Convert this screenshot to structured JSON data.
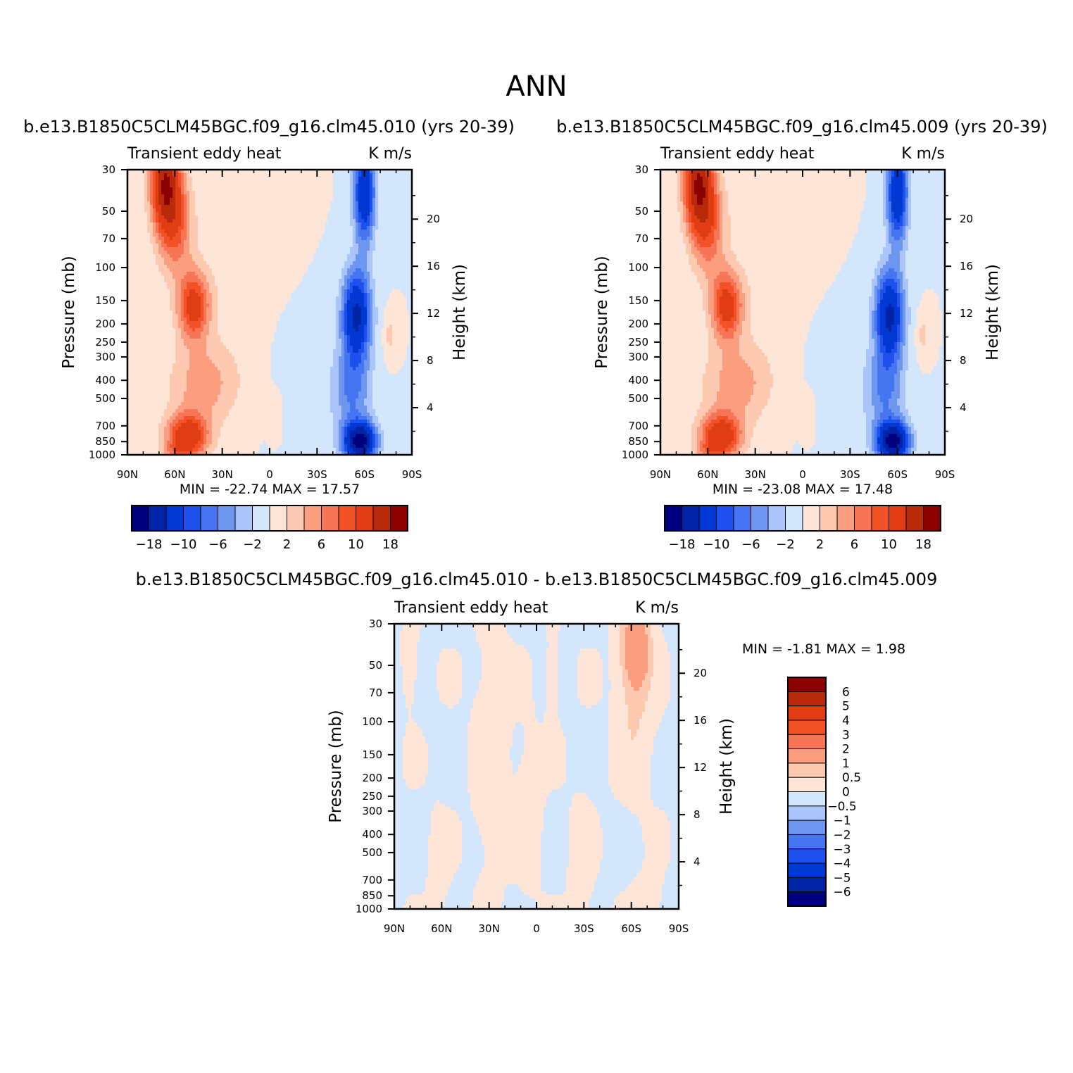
{
  "figure": {
    "title": "ANN"
  },
  "colors": {
    "main_scale": [
      "#00007f",
      "#0024a8",
      "#0038d4",
      "#1e50ee",
      "#4575f0",
      "#6c96f0",
      "#a9c5fb",
      "#d3e6fb",
      "#fde6d7",
      "#fdc9b0",
      "#fb9e80",
      "#f87456",
      "#f25225",
      "#e03d15",
      "#b82a0a",
      "#8b0000"
    ],
    "diff_scale": [
      "#00007f",
      "#0024a8",
      "#0038d4",
      "#1e50ee",
      "#4575f0",
      "#6c96f0",
      "#a9c5fb",
      "#d3e6fb",
      "#fde6d7",
      "#fdc9b0",
      "#fb9e80",
      "#f87456",
      "#f25225",
      "#e03d15",
      "#b82a0a",
      "#8b0000"
    ]
  },
  "panels": [
    {
      "id": "case",
      "title": "b.e13.B1850C5CLM45BGC.f09_g16.clm45.010 (yrs 20-39)",
      "left_label": "Transient eddy heat",
      "right_label": "K m/s",
      "stats": "MIN =  -22.74   MAX =   17.57"
    },
    {
      "id": "control",
      "title": "b.e13.B1850C5CLM45BGC.f09_g16.clm45.009 (yrs 20-39)",
      "left_label": "Transient eddy heat",
      "right_label": "K m/s",
      "stats": "MIN =  -23.08   MAX =   17.48"
    },
    {
      "id": "diff",
      "title": "b.e13.B1850C5CLM45BGC.f09_g16.clm45.010 - b.e13.B1850C5CLM45BGC.f09_g16.clm45.009",
      "left_label": "Transient eddy heat",
      "right_label": "K m/s",
      "stats": "MIN =   -1.81   MAX =    1.98"
    }
  ],
  "axes": {
    "ylabel": "Pressure (mb)",
    "y2label": "Height (km)"
  },
  "main_colorbar_labels": [
    "-18",
    "-10",
    "-6",
    "-2",
    "2",
    "6",
    "10",
    "18"
  ],
  "diff_colorbar_labels": [
    "6",
    "5",
    "4",
    "3",
    "2",
    "1",
    "0.5",
    "0",
    "-0.5",
    "-1",
    "-2",
    "-3",
    "-4",
    "-5",
    "-6"
  ],
  "chart_data": [
    {
      "type": "heatmap",
      "title": "b.e13.B1850C5CLM45BGC.f09_g16.clm45.010 (yrs 20-39)",
      "ylabel": "Pressure (mb)",
      "y2label": "Height (km)",
      "units": "K m/s",
      "x_ticks": [
        "90N",
        "60N",
        "30N",
        "0",
        "30S",
        "60S",
        "90S"
      ],
      "x_values": [
        90,
        60,
        30,
        0,
        -30,
        -60,
        -90
      ],
      "y_ticks": [
        30,
        50,
        70,
        100,
        150,
        200,
        250,
        300,
        400,
        500,
        700,
        850,
        1000
      ],
      "y2_ticks": [
        20,
        16,
        12,
        8,
        4
      ],
      "ylim": [
        1000,
        30
      ],
      "min": -22.74,
      "max": 17.57,
      "levels": [
        -18,
        -14,
        -10,
        -8,
        -6,
        -4,
        -2,
        0,
        2,
        4,
        6,
        8,
        10,
        14,
        18
      ],
      "features": [
        {
          "lat": 63,
          "p": 35,
          "value": 16
        },
        {
          "lat": 48,
          "p": 160,
          "value": 11
        },
        {
          "lat": 55,
          "p": 800,
          "value": 12
        },
        {
          "lat": -60,
          "p": 40,
          "value": -14
        },
        {
          "lat": -55,
          "p": 180,
          "value": -16
        },
        {
          "lat": -58,
          "p": 850,
          "value": -20
        }
      ]
    },
    {
      "type": "heatmap",
      "title": "b.e13.B1850C5CLM45BGC.f09_g16.clm45.009 (yrs 20-39)",
      "ylabel": "Pressure (mb)",
      "y2label": "Height (km)",
      "units": "K m/s",
      "x_ticks": [
        "90N",
        "60N",
        "30N",
        "0",
        "30S",
        "60S",
        "90S"
      ],
      "x_values": [
        90,
        60,
        30,
        0,
        -30,
        -60,
        -90
      ],
      "y_ticks": [
        30,
        50,
        70,
        100,
        150,
        200,
        250,
        300,
        400,
        500,
        700,
        850,
        1000
      ],
      "y2_ticks": [
        20,
        16,
        12,
        8,
        4
      ],
      "ylim": [
        1000,
        30
      ],
      "min": -23.08,
      "max": 17.48,
      "levels": [
        -18,
        -14,
        -10,
        -8,
        -6,
        -4,
        -2,
        0,
        2,
        4,
        6,
        8,
        10,
        14,
        18
      ],
      "features": [
        {
          "lat": 63,
          "p": 35,
          "value": 16
        },
        {
          "lat": 48,
          "p": 160,
          "value": 11
        },
        {
          "lat": 55,
          "p": 800,
          "value": 12
        },
        {
          "lat": -60,
          "p": 40,
          "value": -14
        },
        {
          "lat": -55,
          "p": 180,
          "value": -16
        },
        {
          "lat": -58,
          "p": 850,
          "value": -20
        }
      ]
    },
    {
      "type": "heatmap",
      "title": "b.e13.B1850C5CLM45BGC.f09_g16.clm45.010 - b.e13.B1850C5CLM45BGC.f09_g16.clm45.009",
      "ylabel": "Pressure (mb)",
      "y2label": "Height (km)",
      "units": "K m/s",
      "x_ticks": [
        "90N",
        "60N",
        "30N",
        "0",
        "30S",
        "60S",
        "90S"
      ],
      "x_values": [
        90,
        60,
        30,
        0,
        -30,
        -60,
        -90
      ],
      "y_ticks": [
        30,
        50,
        70,
        100,
        150,
        200,
        250,
        300,
        400,
        500,
        700,
        850,
        1000
      ],
      "y2_ticks": [
        20,
        16,
        12,
        8,
        4
      ],
      "ylim": [
        1000,
        30
      ],
      "min": -1.81,
      "max": 1.98,
      "levels": [
        -6,
        -5,
        -4,
        -3,
        -2,
        -1,
        -0.5,
        0,
        0.5,
        1,
        2,
        3,
        4,
        5,
        6
      ],
      "features": [
        {
          "lat": -62,
          "p": 40,
          "value": 1.5
        },
        {
          "lat": 10,
          "p": 200,
          "value": 0.3
        },
        {
          "lat": -20,
          "p": 300,
          "value": -0.3
        }
      ]
    }
  ]
}
